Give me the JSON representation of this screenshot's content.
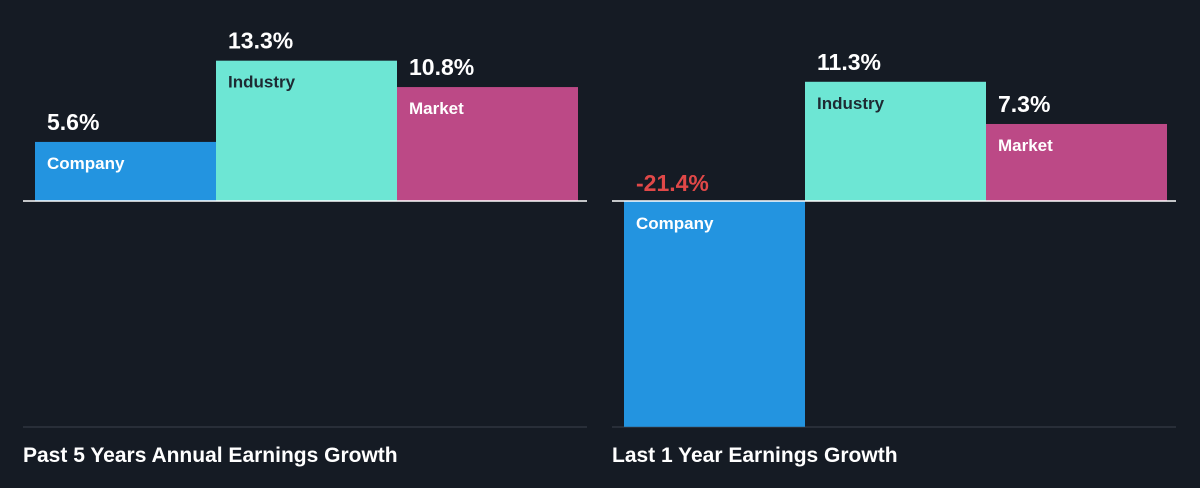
{
  "colors": {
    "background": "#151b24",
    "company": "#2394e0",
    "industry": "#6de6d4",
    "market": "#bc4986",
    "negative_label": "#e04848",
    "text": "#ffffff",
    "dark_label": "#1e2a33",
    "axis": "#ffffff"
  },
  "chart_data": [
    {
      "type": "bar",
      "title": "Past 5 Years Annual Earnings Growth",
      "categories": [
        "Company",
        "Industry",
        "Market"
      ],
      "values": [
        5.6,
        13.3,
        10.8
      ],
      "labels": [
        "5.6%",
        "13.3%",
        "10.8%"
      ],
      "ylim": [
        -21.4,
        16.0
      ],
      "grid": false
    },
    {
      "type": "bar",
      "title": "Last 1 Year Earnings Growth",
      "categories": [
        "Company",
        "Industry",
        "Market"
      ],
      "values": [
        -21.4,
        11.3,
        7.3
      ],
      "labels": [
        "-21.4%",
        "11.3%",
        "7.3%"
      ],
      "ylim": [
        -21.4,
        16.0
      ],
      "grid": false
    }
  ]
}
